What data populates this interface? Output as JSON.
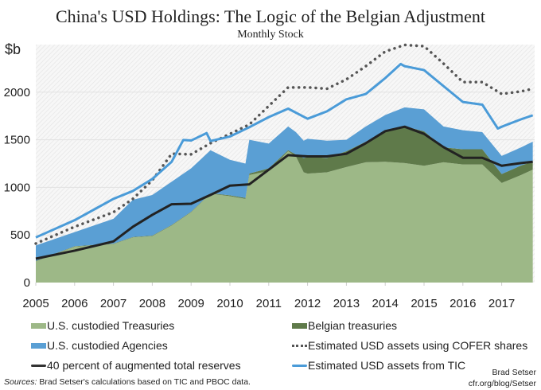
{
  "chart_data": {
    "type": "area",
    "title": "China's USD Holdings: The Logic of the Belgian Adjustment",
    "subtitle": "Monthly Stock",
    "ylabel": "$b",
    "ylim": [
      0,
      2500
    ],
    "xlim": [
      2005,
      2018
    ],
    "yticks": [
      0,
      500,
      1000,
      1500,
      2000
    ],
    "xticks": [
      2005,
      2006,
      2007,
      2008,
      2009,
      2010,
      2011,
      2012,
      2013,
      2014,
      2015,
      2016,
      2017
    ],
    "grid": true,
    "legend": "bottom",
    "stacked_areas": [
      {
        "name": "U.S. custodied Treasuries",
        "color": "#9db887",
        "x": [
          2005,
          2006,
          2007,
          2007.5,
          2008,
          2008.5,
          2009,
          2009.5,
          2010,
          2010.4,
          2010.5,
          2011,
          2011.5,
          2011.7,
          2011.9,
          2012,
          2012.5,
          2013,
          2013.5,
          2014,
          2014.5,
          2015,
          2015.5,
          2016,
          2016.5,
          2017,
          2017.5,
          2017.8
        ],
        "values": [
          223,
          377,
          404,
          474,
          488,
          600,
          739,
          934,
          907,
          879,
          1130,
          1172,
          1381,
          1325,
          1158,
          1144,
          1158,
          1213,
          1264,
          1269,
          1255,
          1227,
          1264,
          1241,
          1241,
          1046,
          1130,
          1186
        ]
      },
      {
        "name": "Belgian treasuries",
        "color": "#5f7a4a",
        "x": [
          2005,
          2006,
          2007,
          2007.5,
          2008,
          2008.5,
          2009,
          2009.5,
          2010,
          2010.4,
          2010.5,
          2011,
          2011.5,
          2011.7,
          2011.9,
          2012,
          2012.5,
          2013,
          2013.5,
          2014,
          2014.5,
          2015,
          2015.5,
          2016,
          2016.5,
          2017,
          2017.5,
          2017.8
        ],
        "values": [
          5,
          5,
          5,
          5,
          5,
          5,
          5,
          5,
          10,
          10,
          15,
          28,
          9,
          20,
          150,
          176,
          152,
          167,
          216,
          321,
          385,
          363,
          156,
          159,
          159,
          94,
          100,
          84
        ]
      },
      {
        "name": "U.S. custodied Agencies",
        "color": "#5a9fd4",
        "x": [
          2005,
          2006,
          2007,
          2007.5,
          2008,
          2008.5,
          2009,
          2009.5,
          2010,
          2010.4,
          2010.5,
          2011,
          2011.5,
          2011.7,
          2011.9,
          2012,
          2012.5,
          2013,
          2013.5,
          2014,
          2014.5,
          2015,
          2015.5,
          2016,
          2016.5,
          2017,
          2017.5,
          2017.8
        ],
        "values": [
          162,
          148,
          261,
          391,
          427,
          455,
          456,
          451,
          373,
          361,
          355,
          260,
          250,
          235,
          182,
          190,
          180,
          120,
          160,
          170,
          200,
          230,
          220,
          200,
          180,
          190,
          190,
          210
        ]
      }
    ],
    "lines": [
      {
        "name": "Estimated USD assets using COFER shares",
        "color": "#555555",
        "style": "dotted",
        "x": [
          2005,
          2006,
          2007,
          2007.5,
          2008,
          2008.5,
          2009,
          2009.5,
          2010,
          2010.5,
          2011,
          2011.5,
          2012,
          2012.5,
          2013,
          2013.5,
          2014,
          2014.5,
          2015,
          2015.5,
          2016,
          2016.5,
          2017,
          2017.5,
          2017.8
        ],
        "values": [
          410,
          586,
          739,
          879,
          1074,
          1353,
          1347,
          1464,
          1562,
          1660,
          1855,
          2050,
          2050,
          2036,
          2134,
          2273,
          2427,
          2496,
          2483,
          2301,
          2106,
          2106,
          1981,
          2008,
          2036
        ]
      },
      {
        "name": "Estimated USD assets from TIC",
        "color": "#4a9bd8",
        "style": "solid",
        "x": [
          2005,
          2006,
          2007,
          2007.5,
          2008,
          2008.5,
          2008.8,
          2009,
          2009.4,
          2009.5,
          2010,
          2010.5,
          2011,
          2011.5,
          2012,
          2012.5,
          2013,
          2013.5,
          2014,
          2014.4,
          2014.5,
          2015,
          2015.5,
          2016,
          2016.5,
          2016.9,
          2017,
          2017.5,
          2017.8
        ],
        "values": [
          474,
          655,
          879,
          962,
          1088,
          1269,
          1498,
          1492,
          1570,
          1487,
          1534,
          1632,
          1738,
          1827,
          1721,
          1799,
          1925,
          1981,
          2148,
          2296,
          2273,
          2232,
          2064,
          1897,
          1869,
          1618,
          1637,
          1715,
          1757
        ]
      },
      {
        "name": "40 percent of augmented total reserves",
        "color": "#222222",
        "style": "solid",
        "x": [
          2005,
          2006,
          2007,
          2007.5,
          2008,
          2008.5,
          2009,
          2009.5,
          2010,
          2010.5,
          2011,
          2011.5,
          2012,
          2012.5,
          2013,
          2013.5,
          2014,
          2014.5,
          2015,
          2015.5,
          2016,
          2016.5,
          2017,
          2017.5,
          2017.8
        ],
        "values": [
          251,
          335,
          432,
          586,
          711,
          823,
          828,
          921,
          1018,
          1032,
          1186,
          1339,
          1325,
          1325,
          1353,
          1464,
          1590,
          1637,
          1562,
          1423,
          1311,
          1311,
          1227,
          1255,
          1269
        ]
      }
    ]
  },
  "legend": {
    "treasuries": "U.S. custodied Treasuries",
    "belgian": "Belgian treasuries",
    "agencies": "U.S. custodied Agencies",
    "cofer": "Estimated USD assets using COFER shares",
    "reserves": "40 percent of augmented total reserves",
    "tic": "Estimated USD assets from TIC"
  },
  "footer": {
    "sources_label": "Sources:",
    "sources_text": " Brad Setser's calculations based on TIC and PBOC data.",
    "author": "Brad Setser",
    "site": "cfr.org/blog/Setser"
  }
}
